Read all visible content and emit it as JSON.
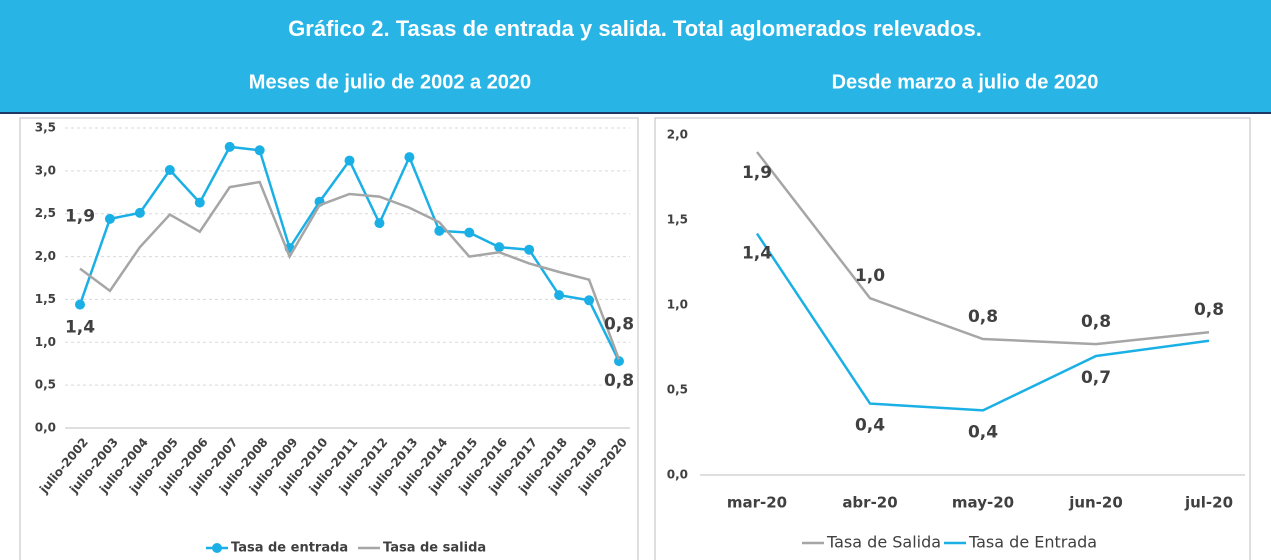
{
  "title": "Gráfico 2.   Tasas de entrada y salida. Total aglomerados relevados.",
  "chart_data": [
    {
      "type": "line",
      "title": "Meses de julio de 2002 a 2020",
      "categories": [
        "julio-2002",
        "julio-2003",
        "julio-2004",
        "julio-2005",
        "julio-2006",
        "julio-2007",
        "julio-2008",
        "julio-2009",
        "julio-2010",
        "julio-2011",
        "julio-2012",
        "julio-2013",
        "julio-2014",
        "julio-2015",
        "julio-2016",
        "julio-2017",
        "julio-2018",
        "julio-2019",
        "julio-2020"
      ],
      "series": [
        {
          "name": "Tasa de entrada",
          "color": "#1ab0e6",
          "markers": true,
          "values": [
            1.44,
            2.44,
            2.51,
            3.01,
            2.63,
            3.28,
            3.24,
            2.1,
            2.64,
            3.12,
            2.39,
            3.16,
            2.3,
            2.28,
            2.11,
            2.08,
            1.55,
            1.49,
            0.78
          ],
          "value_labels": [
            "1,4",
            null,
            null,
            null,
            null,
            null,
            null,
            null,
            null,
            null,
            null,
            null,
            null,
            null,
            null,
            null,
            null,
            null,
            "0,8"
          ]
        },
        {
          "name": "Tasa de salida",
          "color": "#a6a6a6",
          "markers": false,
          "values": [
            1.86,
            1.6,
            2.11,
            2.49,
            2.29,
            2.81,
            2.87,
            2.0,
            2.6,
            2.73,
            2.7,
            2.57,
            2.4,
            2.0,
            2.05,
            1.92,
            1.82,
            1.73,
            0.8
          ],
          "value_labels": [
            "1,9",
            null,
            null,
            null,
            null,
            null,
            null,
            null,
            null,
            null,
            null,
            null,
            null,
            null,
            null,
            null,
            null,
            null,
            "0,8"
          ]
        }
      ],
      "ylim": [
        0,
        3.5
      ],
      "yticks": [
        {
          "value": 0,
          "label": "0,0"
        },
        {
          "value": 0.5,
          "label": "0,5"
        },
        {
          "value": 1,
          "label": "1,0"
        },
        {
          "value": 1.5,
          "label": "1,5"
        },
        {
          "value": 2,
          "label": "2,0"
        },
        {
          "value": 2.5,
          "label": "2,5"
        },
        {
          "value": 3,
          "label": "3,0"
        },
        {
          "value": 3.5,
          "label": "3,5"
        }
      ],
      "grid": true,
      "legend": "bottom"
    },
    {
      "type": "line",
      "title": "Desde marzo a julio de 2020",
      "categories": [
        "mar-20",
        "abr-20",
        "may-20",
        "jun-20",
        "jul-20"
      ],
      "series": [
        {
          "name": "Tasa de Salida",
          "color": "#a6a6a6",
          "markers": false,
          "values": [
            1.9,
            1.04,
            0.8,
            0.77,
            0.84
          ],
          "value_labels": [
            "1,9",
            "1,0",
            "0,8",
            "0,8",
            "0,8"
          ]
        },
        {
          "name": "Tasa de Entrada",
          "color": "#1ab0e6",
          "markers": false,
          "values": [
            1.42,
            0.42,
            0.38,
            0.7,
            0.79
          ],
          "value_labels": [
            "1,4",
            "0,4",
            "0,4",
            "0,7",
            null
          ]
        }
      ],
      "ylim": [
        0,
        2
      ],
      "yticks": [
        {
          "value": 0,
          "label": "0,0"
        },
        {
          "value": 0.5,
          "label": "0,5"
        },
        {
          "value": 1,
          "label": "1,0"
        },
        {
          "value": 1.5,
          "label": "1,5"
        },
        {
          "value": 2,
          "label": "2,0"
        }
      ],
      "grid": false,
      "legend": "bottom"
    }
  ]
}
